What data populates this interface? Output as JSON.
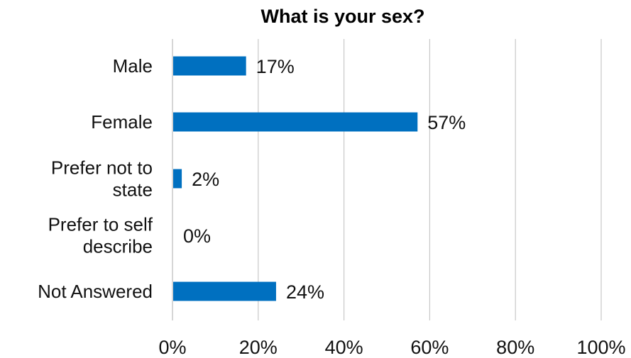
{
  "chart_data": {
    "type": "bar",
    "orientation": "horizontal",
    "title": "What is your sex?",
    "xlabel": "",
    "ylabel": "",
    "categories": [
      "Male",
      "Female",
      "Prefer not to state",
      "Prefer to self describe",
      "Not Answered"
    ],
    "category_lines": [
      [
        "Male"
      ],
      [
        "Female"
      ],
      [
        "Prefer not to",
        "state"
      ],
      [
        "Prefer to self",
        "describe"
      ],
      [
        "Not Answered"
      ]
    ],
    "values": [
      17,
      57,
      2,
      0,
      24
    ],
    "data_labels": [
      "17%",
      "57%",
      "2%",
      "0%",
      "24%"
    ],
    "xlim": [
      0,
      100
    ],
    "x_ticks": [
      0,
      20,
      40,
      60,
      80,
      100
    ],
    "x_tick_labels": [
      "0%",
      "20%",
      "40%",
      "60%",
      "80%",
      "100%"
    ],
    "grid": "vertical",
    "legend": "none",
    "colors": {
      "bar": "#0070C0",
      "grid": "#C8C8C8",
      "axis": "#C8C8C8"
    }
  }
}
